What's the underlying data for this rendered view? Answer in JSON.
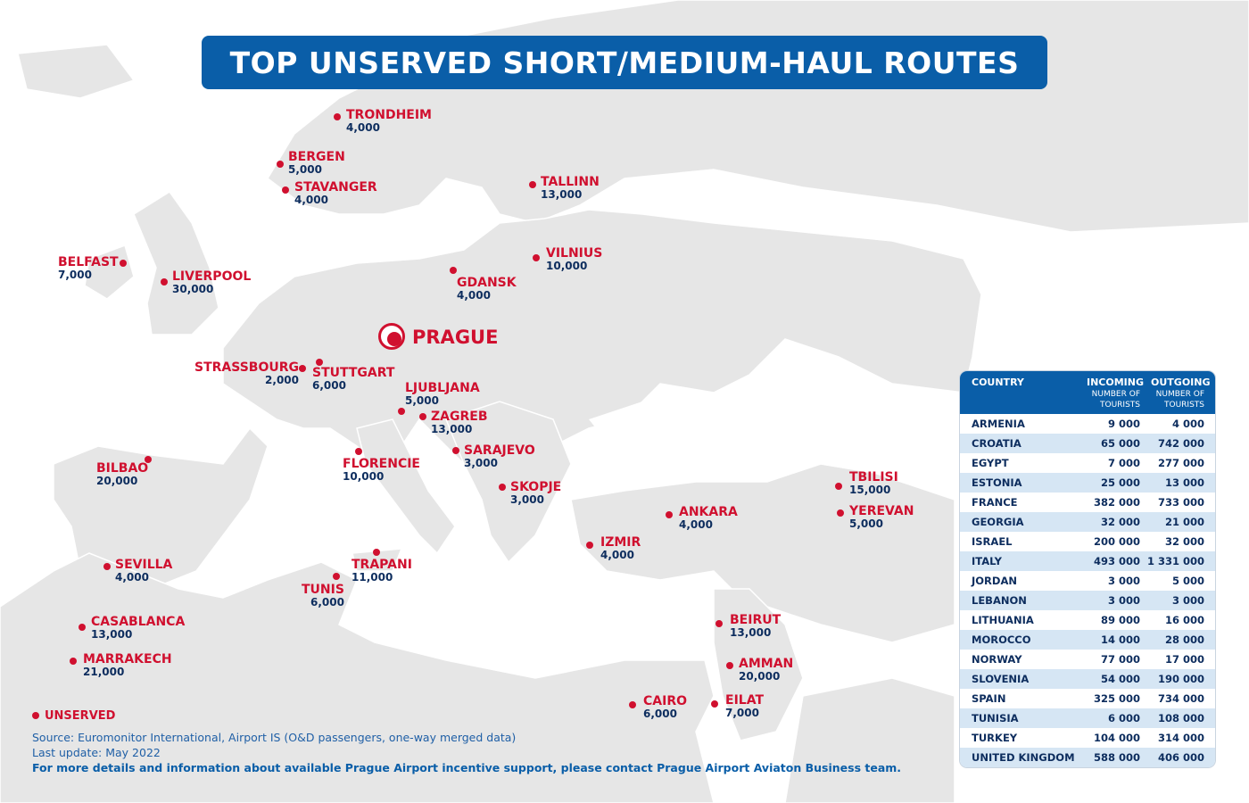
{
  "title": "TOP UNSERVED SHORT/MEDIUM-HAUL ROUTES",
  "colors": {
    "accent": "#0a5ea8",
    "marker": "#d0102f",
    "land": "#e8e8e8",
    "sea": "#ffffff"
  },
  "hub": {
    "name": "PRAGUE"
  },
  "cities": [
    {
      "name": "TRONDHEIM",
      "value": "4,000"
    },
    {
      "name": "BERGEN",
      "value": "5,000"
    },
    {
      "name": "STAVANGER",
      "value": "4,000"
    },
    {
      "name": "TALLINN",
      "value": "13,000"
    },
    {
      "name": "BELFAST",
      "value": "7,000"
    },
    {
      "name": "LIVERPOOL",
      "value": "30,000"
    },
    {
      "name": "VILNIUS",
      "value": "10,000"
    },
    {
      "name": "GDANSK",
      "value": "4,000"
    },
    {
      "name": "STRASSBOURG",
      "value": "2,000"
    },
    {
      "name": "STUTTGART",
      "value": "6,000"
    },
    {
      "name": "LJUBLJANA",
      "value": "5,000"
    },
    {
      "name": "ZAGREB",
      "value": "13,000"
    },
    {
      "name": "SARAJEVO",
      "value": "3,000"
    },
    {
      "name": "BILBAO",
      "value": "20,000"
    },
    {
      "name": "FLORENCIE",
      "value": "10,000"
    },
    {
      "name": "SKOPJE",
      "value": "3,000"
    },
    {
      "name": "TBILISI",
      "value": "15,000"
    },
    {
      "name": "YEREVAN",
      "value": "5,000"
    },
    {
      "name": "ANKARA",
      "value": "4,000"
    },
    {
      "name": "IZMIR",
      "value": "4,000"
    },
    {
      "name": "SEVILLA",
      "value": "4,000"
    },
    {
      "name": "TRAPANI",
      "value": "11,000"
    },
    {
      "name": "TUNIS",
      "value": "6,000"
    },
    {
      "name": "CASABLANCA",
      "value": "13,000"
    },
    {
      "name": "MARRAKECH",
      "value": "21,000"
    },
    {
      "name": "BEIRUT",
      "value": "13,000"
    },
    {
      "name": "AMMAN",
      "value": "20,000"
    },
    {
      "name": "CAIRO",
      "value": "6,000"
    },
    {
      "name": "EILAT",
      "value": "7,000"
    }
  ],
  "legend": {
    "label": "UNSERVED"
  },
  "source": {
    "line1": "Source: Euromonitor International, Airport IS (O&D passengers, one-way merged data)",
    "line2": "Last update: May 2022",
    "line3": "For more details and information about available Prague Airport incentive support, please contact Prague Airport Aviaton Business team."
  },
  "table": {
    "headers": {
      "country": "COUNTRY",
      "incoming": "INCOMING",
      "outgoing": "OUTGOING",
      "incoming_sub": "NUMBER OF TOURISTS",
      "outgoing_sub": "NUMBER OF TOURISTS"
    },
    "rows": [
      [
        "ARMENIA",
        "9 000",
        "4 000"
      ],
      [
        "CROATIA",
        "65 000",
        "742 000"
      ],
      [
        "EGYPT",
        "7 000",
        "277 000"
      ],
      [
        "ESTONIA",
        "25 000",
        "13 000"
      ],
      [
        "FRANCE",
        "382 000",
        "733 000"
      ],
      [
        "GEORGIA",
        "32 000",
        "21 000"
      ],
      [
        "ISRAEL",
        "200 000",
        "32 000"
      ],
      [
        "ITALY",
        "493 000",
        "1 331 000"
      ],
      [
        "JORDAN",
        "3 000",
        "5 000"
      ],
      [
        "LEBANON",
        "3 000",
        "3 000"
      ],
      [
        "LITHUANIA",
        "89 000",
        "16 000"
      ],
      [
        "MOROCCO",
        "14 000",
        "28 000"
      ],
      [
        "NORWAY",
        "77 000",
        "17 000"
      ],
      [
        "SLOVENIA",
        "54 000",
        "190 000"
      ],
      [
        "SPAIN",
        "325 000",
        "734 000"
      ],
      [
        "TUNISIA",
        "6 000",
        "108 000"
      ],
      [
        "TURKEY",
        "104 000",
        "314 000"
      ],
      [
        "UNITED KINGDOM",
        "588 000",
        "406 000"
      ]
    ]
  }
}
